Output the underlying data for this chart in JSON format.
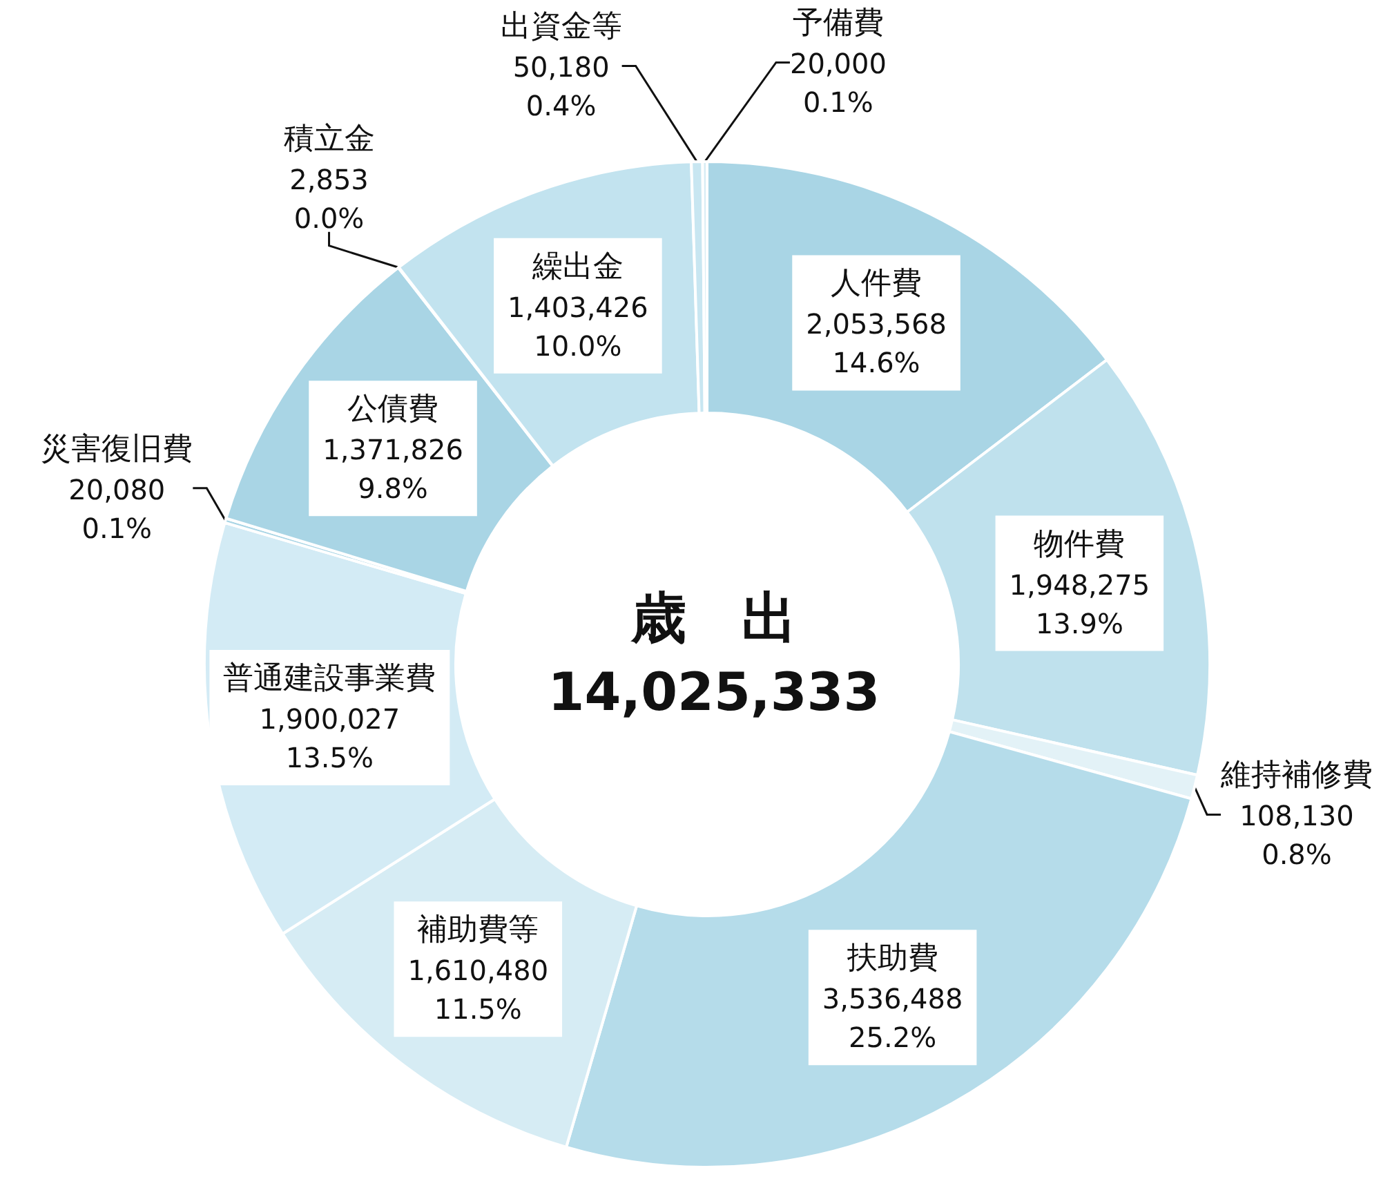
{
  "chart_data": {
    "type": "donut",
    "title": "歳　出",
    "subtitle": "14,025,333",
    "categories": [
      "人件費",
      "物件費",
      "維持補修費",
      "扶助費",
      "補助費等",
      "普通建設事業費",
      "災害復旧費",
      "公債費",
      "積立金",
      "繰出金",
      "出資金等",
      "予備費"
    ],
    "values": [
      2053568,
      1948275,
      108130,
      3536488,
      1610480,
      1900027,
      20080,
      1371826,
      2853,
      1403426,
      50180,
      20000
    ],
    "colors": [
      "#a9d5e5",
      "#bfe1ed",
      "#e3f2f7",
      "#b5dcea",
      "#d6ecf4",
      "#d3ebf5",
      "#a9d5e5",
      "#a9d5e5",
      "#a9d5e5",
      "#c2e3ef",
      "#c8e6f1",
      "#d6ecf4"
    ],
    "value_labels": [
      "2,053,568\n14.6%",
      "1,948,275\n13.9%",
      "108,130\n0.8%",
      "3,536,488\n25.2%",
      "1,610,480\n11.5%",
      "1,900,027\n13.5%",
      "20,080\n0.1%",
      "1,371,826\n9.8%",
      "2,853\n0.0%",
      "1,403,426\n10.0%",
      "50,180\n0.4%",
      "20,000\n0.1%"
    ]
  }
}
